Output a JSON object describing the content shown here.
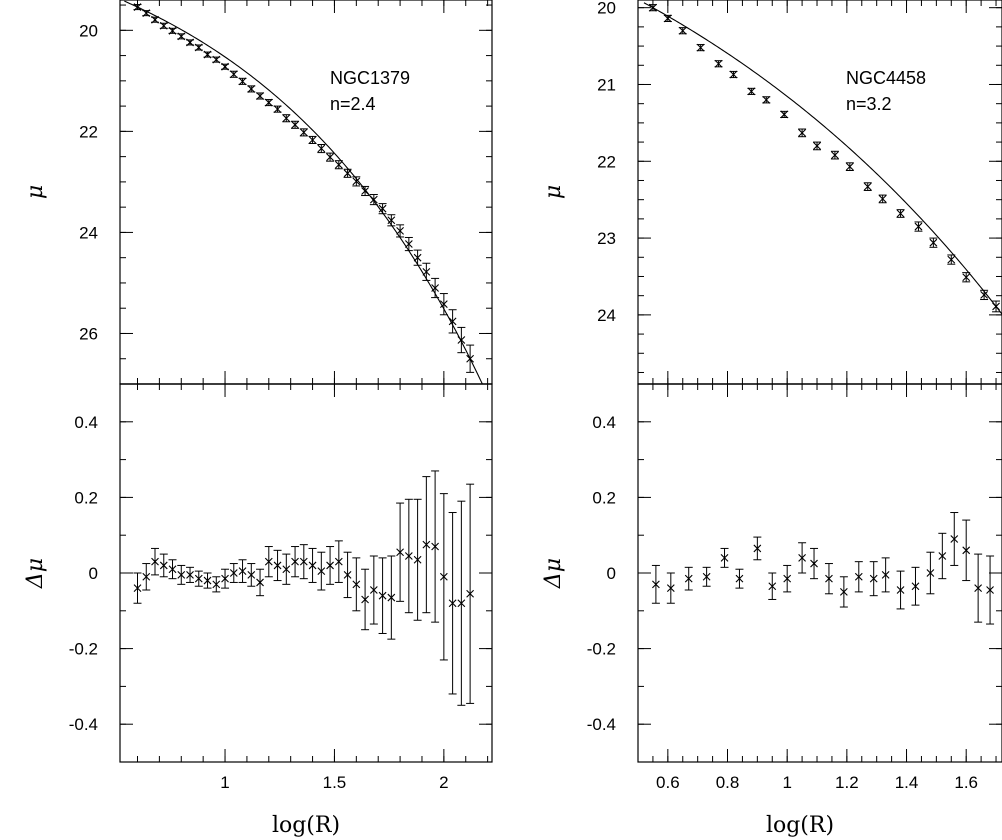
{
  "chart_data": [
    {
      "type": "scatter",
      "panel": "NGC1379 profile",
      "annotation": [
        "NGC1379",
        "n=2.4"
      ],
      "ylabel": "μ",
      "xlabel": "",
      "xlim": [
        0.52,
        2.22
      ],
      "ylim": [
        27.0,
        19.4
      ],
      "y_inverted": true,
      "xticks": [
        1,
        1.5,
        2
      ],
      "xtick_labels": [],
      "yticks": [
        20,
        22,
        24,
        26
      ],
      "ytick_labels": [
        "20",
        "22",
        "24",
        "26"
      ],
      "model_sersic_n": 2.4,
      "points": {
        "x": [
          0.6,
          0.64,
          0.68,
          0.72,
          0.76,
          0.8,
          0.84,
          0.88,
          0.92,
          0.96,
          1.0,
          1.04,
          1.08,
          1.12,
          1.16,
          1.2,
          1.24,
          1.28,
          1.32,
          1.36,
          1.4,
          1.44,
          1.48,
          1.52,
          1.56,
          1.6,
          1.64,
          1.68,
          1.72,
          1.76,
          1.8,
          1.84,
          1.88,
          1.92,
          1.96,
          2.0,
          2.04,
          2.08,
          2.12
        ],
        "y": [
          19.54,
          19.66,
          19.79,
          19.91,
          20.01,
          20.12,
          20.24,
          20.34,
          20.48,
          20.58,
          20.72,
          20.87,
          21.01,
          21.16,
          21.3,
          21.43,
          21.56,
          21.74,
          21.87,
          22.02,
          22.17,
          22.34,
          22.51,
          22.66,
          22.83,
          22.99,
          23.18,
          23.35,
          23.53,
          23.76,
          23.97,
          24.23,
          24.5,
          24.78,
          25.1,
          25.42,
          25.76,
          26.13,
          26.5
        ],
        "yerr": [
          0.05,
          0.05,
          0.05,
          0.05,
          0.05,
          0.05,
          0.05,
          0.05,
          0.05,
          0.05,
          0.05,
          0.06,
          0.06,
          0.06,
          0.06,
          0.06,
          0.06,
          0.07,
          0.07,
          0.07,
          0.07,
          0.08,
          0.08,
          0.08,
          0.08,
          0.09,
          0.09,
          0.1,
          0.1,
          0.11,
          0.12,
          0.13,
          0.15,
          0.17,
          0.19,
          0.21,
          0.23,
          0.25,
          0.27
        ]
      }
    },
    {
      "type": "scatter",
      "panel": "NGC1379 residuals",
      "ylabel": "Δμ",
      "xlabel": "log(R)",
      "xlim": [
        0.52,
        2.22
      ],
      "ylim": [
        -0.5,
        0.5
      ],
      "xticks": [
        1,
        1.5,
        2
      ],
      "xtick_labels": [
        "1",
        "1.5",
        "2"
      ],
      "yticks": [
        -0.4,
        -0.2,
        0,
        0.2,
        0.4
      ],
      "ytick_labels": [
        "-0.4",
        "-0.2",
        "0",
        "0.2",
        "0.4"
      ],
      "points": {
        "x": [
          0.6,
          0.64,
          0.68,
          0.72,
          0.76,
          0.8,
          0.84,
          0.88,
          0.92,
          0.96,
          1.0,
          1.04,
          1.08,
          1.12,
          1.16,
          1.2,
          1.24,
          1.28,
          1.32,
          1.36,
          1.4,
          1.44,
          1.48,
          1.52,
          1.56,
          1.6,
          1.64,
          1.68,
          1.72,
          1.76,
          1.8,
          1.84,
          1.88,
          1.92,
          1.96,
          2.0,
          2.04,
          2.08,
          2.12
        ],
        "y": [
          -0.04,
          -0.01,
          0.03,
          0.02,
          0.01,
          -0.005,
          -0.005,
          -0.015,
          -0.02,
          -0.03,
          -0.015,
          0.0,
          0.005,
          -0.005,
          -0.025,
          0.03,
          0.02,
          0.01,
          0.03,
          0.03,
          0.02,
          0.005,
          0.02,
          0.03,
          -0.005,
          -0.03,
          -0.07,
          -0.045,
          -0.06,
          -0.065,
          0.055,
          0.045,
          0.035,
          0.075,
          0.07,
          -0.01,
          -0.08,
          -0.08,
          -0.055
        ],
        "yerr": [
          0.04,
          0.035,
          0.035,
          0.03,
          0.025,
          0.025,
          0.02,
          0.02,
          0.02,
          0.02,
          0.025,
          0.025,
          0.03,
          0.03,
          0.035,
          0.04,
          0.04,
          0.04,
          0.04,
          0.045,
          0.045,
          0.05,
          0.05,
          0.055,
          0.06,
          0.07,
          0.08,
          0.09,
          0.1,
          0.11,
          0.13,
          0.15,
          0.16,
          0.18,
          0.2,
          0.22,
          0.24,
          0.27,
          0.29
        ]
      }
    },
    {
      "type": "scatter",
      "panel": "NGC4458 profile",
      "annotation": [
        "NGC4458",
        "n=3.2"
      ],
      "ylabel": "μ",
      "xlabel": "",
      "xlim": [
        0.5,
        1.72
      ],
      "ylim": [
        24.9,
        19.9
      ],
      "y_inverted": true,
      "xticks": [
        0.6,
        0.8,
        1,
        1.2,
        1.4,
        1.6
      ],
      "xtick_labels": [],
      "yticks": [
        20,
        21,
        22,
        23,
        24
      ],
      "ytick_labels": [
        "20",
        "21",
        "22",
        "23",
        "24"
      ],
      "model_sersic_n": 3.2,
      "points": {
        "x": [
          0.55,
          0.6,
          0.65,
          0.71,
          0.77,
          0.82,
          0.88,
          0.93,
          0.99,
          1.05,
          1.1,
          1.16,
          1.21,
          1.27,
          1.32,
          1.38,
          1.44,
          1.49,
          1.55,
          1.6,
          1.66,
          1.7
        ],
        "y": [
          20.0,
          20.14,
          20.3,
          20.52,
          20.73,
          20.87,
          21.09,
          21.2,
          21.39,
          21.63,
          21.8,
          21.92,
          22.07,
          22.33,
          22.49,
          22.68,
          22.85,
          23.06,
          23.28,
          23.51,
          23.74,
          23.89
        ],
        "yerr": [
          0.04,
          0.04,
          0.04,
          0.04,
          0.04,
          0.04,
          0.04,
          0.04,
          0.04,
          0.05,
          0.05,
          0.05,
          0.05,
          0.05,
          0.05,
          0.05,
          0.06,
          0.06,
          0.06,
          0.06,
          0.06,
          0.07
        ]
      }
    },
    {
      "type": "scatter",
      "panel": "NGC4458 residuals",
      "ylabel": "Δμ",
      "xlabel": "log(R)",
      "xlim": [
        0.5,
        1.72
      ],
      "ylim": [
        -0.5,
        0.5
      ],
      "xticks": [
        0.6,
        0.8,
        1,
        1.2,
        1.4,
        1.6
      ],
      "xtick_labels": [
        "0.6",
        "0.8",
        "1",
        "1.2",
        "1.4",
        "1.6"
      ],
      "yticks": [
        -0.4,
        -0.2,
        0,
        0.2,
        0.4
      ],
      "ytick_labels": [
        "-0.4",
        "-0.2",
        "0",
        "0.2",
        "0.4"
      ],
      "points": {
        "x": [
          0.56,
          0.61,
          0.67,
          0.73,
          0.79,
          0.84,
          0.9,
          0.95,
          1.0,
          1.05,
          1.09,
          1.14,
          1.19,
          1.24,
          1.29,
          1.33,
          1.38,
          1.43,
          1.48,
          1.52,
          1.56,
          1.6,
          1.64,
          1.68
        ],
        "y": [
          -0.03,
          -0.04,
          -0.015,
          -0.01,
          0.04,
          -0.015,
          0.065,
          -0.035,
          -0.015,
          0.04,
          0.025,
          -0.015,
          -0.05,
          -0.01,
          -0.015,
          -0.005,
          -0.045,
          -0.035,
          0.0,
          0.045,
          0.09,
          0.06,
          -0.04,
          -0.045
        ],
        "yerr": [
          0.05,
          0.04,
          0.03,
          0.025,
          0.025,
          0.025,
          0.03,
          0.035,
          0.035,
          0.04,
          0.04,
          0.04,
          0.04,
          0.04,
          0.045,
          0.045,
          0.05,
          0.05,
          0.055,
          0.06,
          0.07,
          0.08,
          0.09,
          0.09
        ]
      }
    }
  ]
}
